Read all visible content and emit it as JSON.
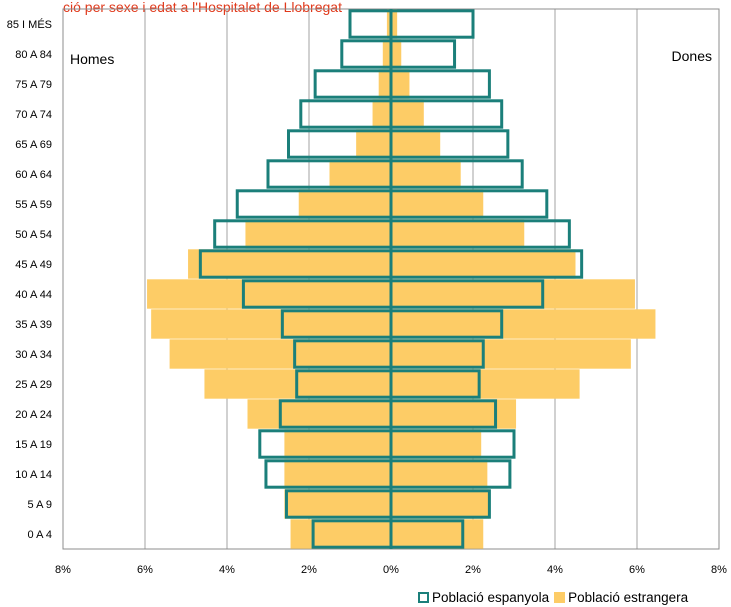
{
  "chart_data": {
    "type": "bar",
    "title": "ció per sexe i edat a l'Hospitalet de Llobregat",
    "left_label": "Homes",
    "right_label": "Dones",
    "categories": [
      "0 A 4",
      "5 A 9",
      "10 A 14",
      "15 A 19",
      "20 A 24",
      "25 A 29",
      "30 A 34",
      "35 A 39",
      "40 A 44",
      "45 A 49",
      "50 A 54",
      "55 A 59",
      "60 A 64",
      "65 A 69",
      "70 A 74",
      "75 A 79",
      "80 A 84",
      "85 I MÉS"
    ],
    "x_ticks": [
      "8%",
      "6%",
      "4%",
      "2%",
      "0%",
      "2%",
      "4%",
      "6%",
      "8%"
    ],
    "xlim": [
      -8,
      8
    ],
    "grid": true,
    "legend_position": "bottom-right",
    "series": [
      {
        "name": "Població espanyola",
        "style": "outline",
        "color": "#1b7f7a",
        "men": [
          1.9,
          2.55,
          3.05,
          3.2,
          2.7,
          2.3,
          2.35,
          2.65,
          3.6,
          4.65,
          4.3,
          3.75,
          3.0,
          2.5,
          2.2,
          1.85,
          1.2,
          1.0
        ],
        "women": [
          1.75,
          2.4,
          2.9,
          3.0,
          2.55,
          2.15,
          2.25,
          2.7,
          3.7,
          4.65,
          4.35,
          3.8,
          3.2,
          2.85,
          2.7,
          2.4,
          1.55,
          2.0
        ]
      },
      {
        "name": "Població estrangera",
        "style": "fill",
        "color": "#fdcc66",
        "men": [
          2.45,
          2.6,
          2.6,
          2.6,
          3.5,
          4.55,
          5.4,
          5.85,
          5.95,
          4.95,
          3.55,
          2.25,
          1.5,
          0.85,
          0.45,
          0.3,
          0.2,
          0.1
        ],
        "women": [
          2.25,
          2.4,
          2.35,
          2.2,
          3.05,
          4.6,
          5.85,
          6.45,
          5.95,
          4.5,
          3.25,
          2.25,
          1.7,
          1.2,
          0.8,
          0.45,
          0.25,
          0.15
        ]
      }
    ]
  }
}
